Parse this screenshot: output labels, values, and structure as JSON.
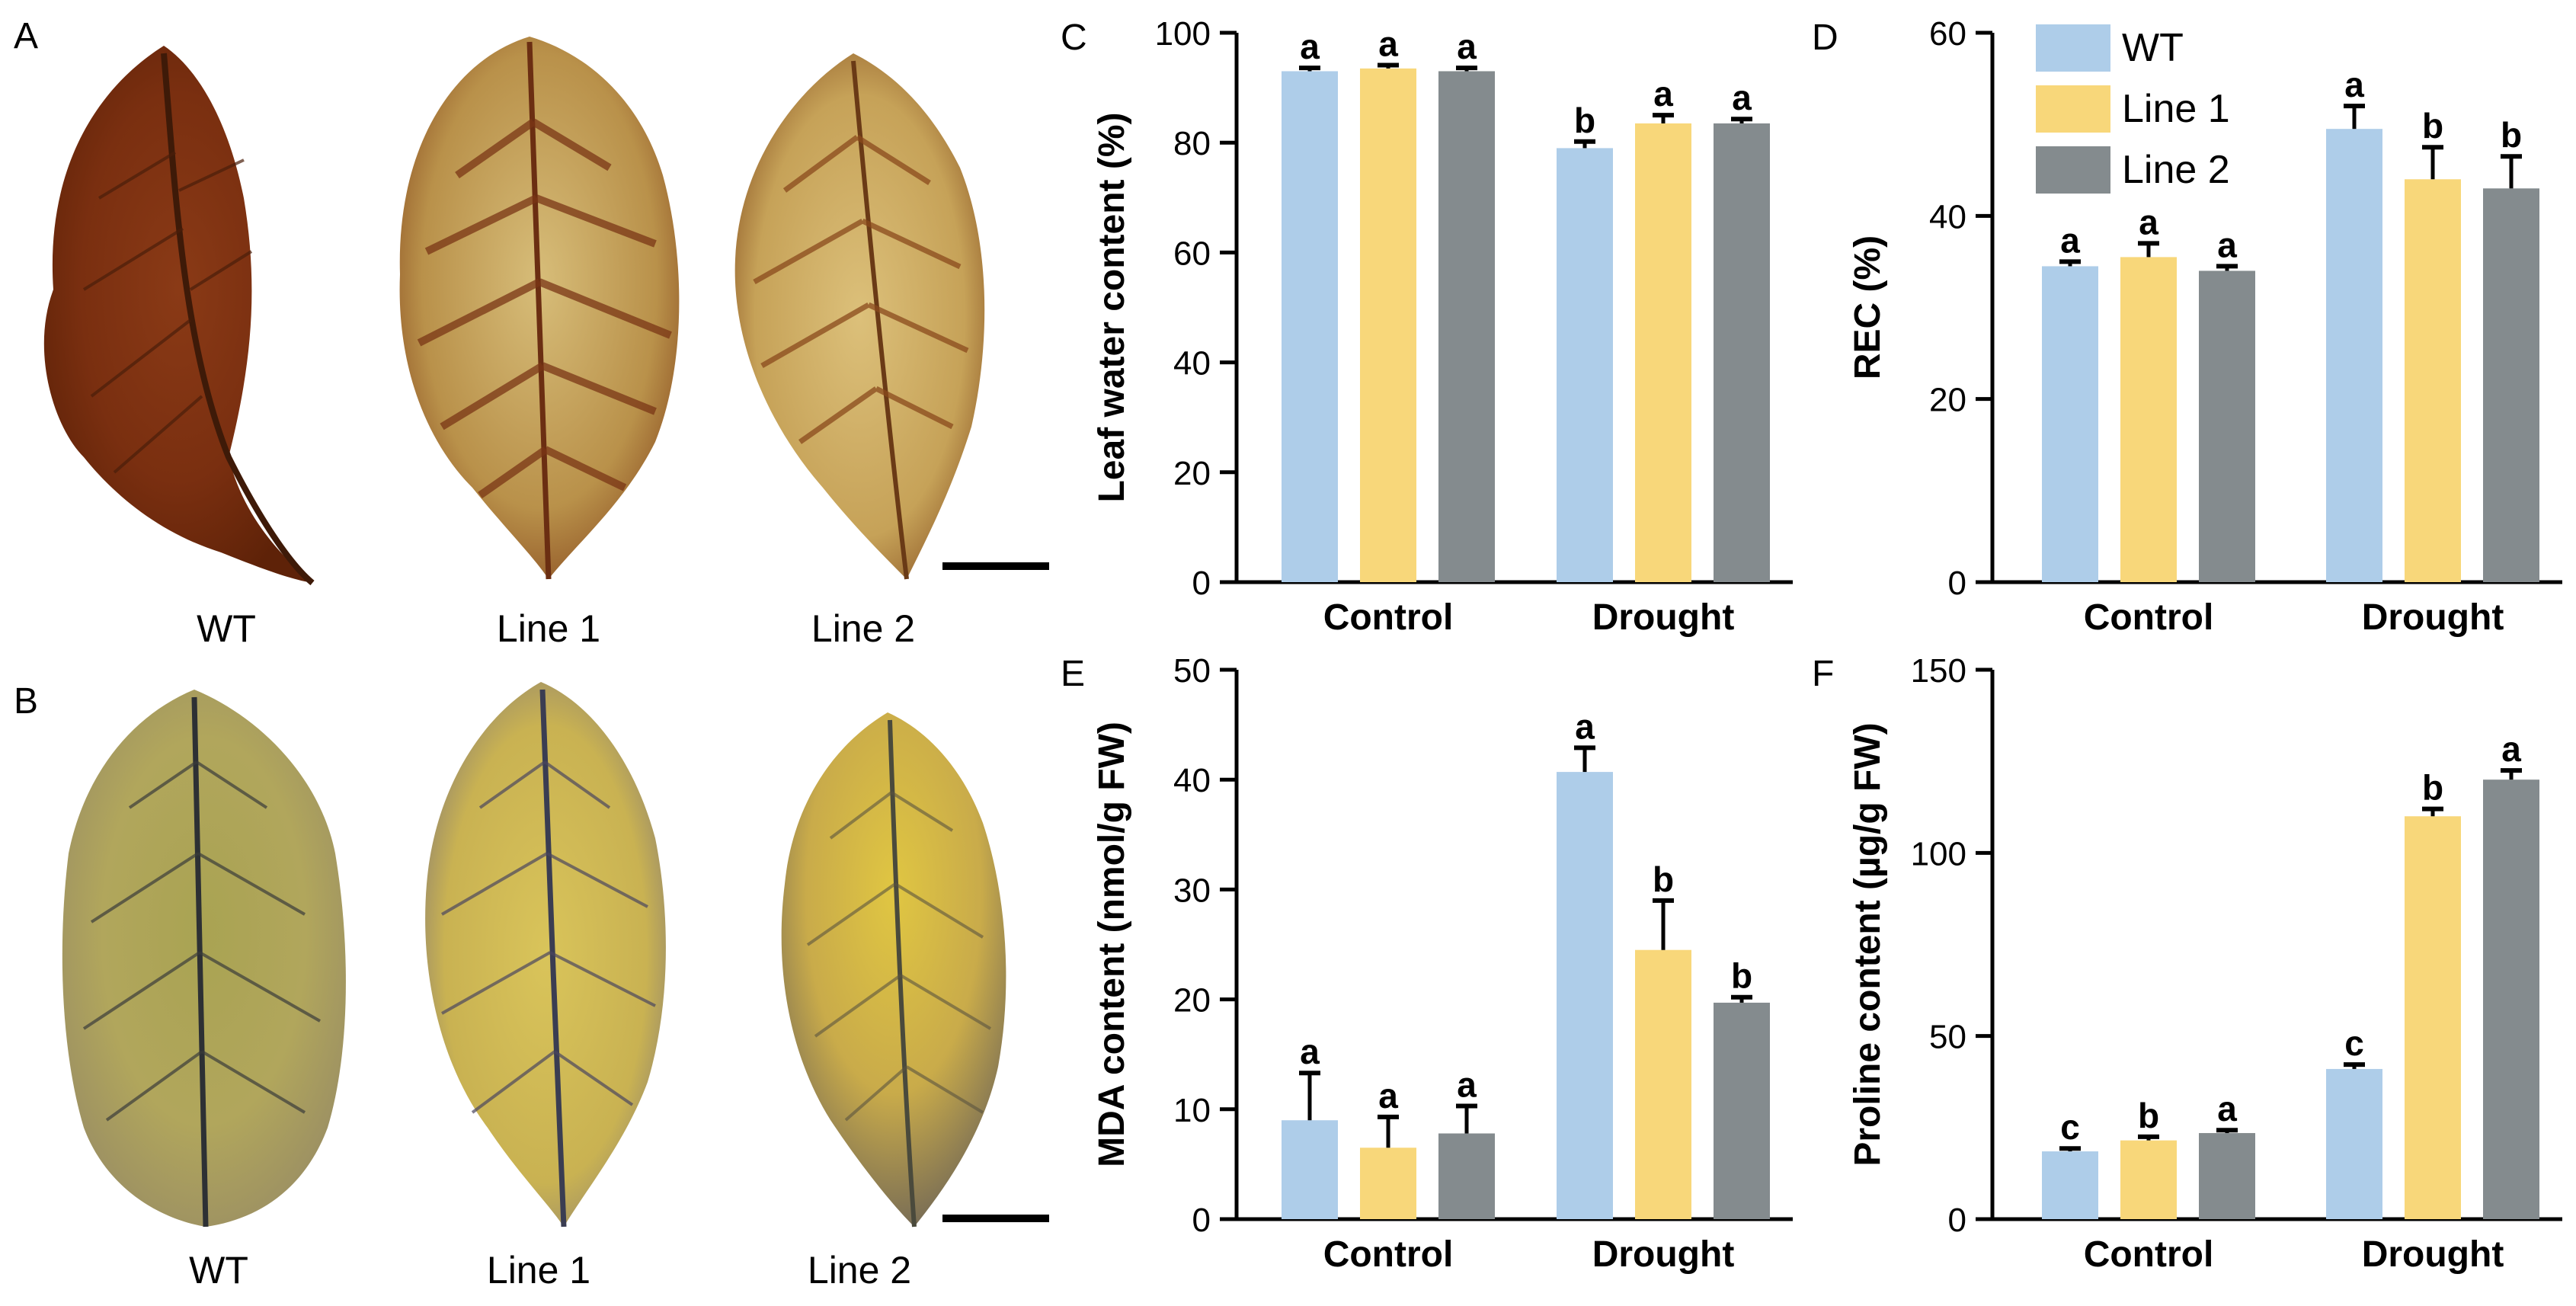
{
  "panels": {
    "A": "A",
    "B": "B",
    "C": "C",
    "D": "D",
    "E": "E",
    "F": "F"
  },
  "photos": {
    "row_A": {
      "labels": [
        "WT",
        "Line 1",
        "Line 2"
      ]
    },
    "row_B": {
      "labels": [
        "WT",
        "Line 1",
        "Line 2"
      ]
    }
  },
  "legend": [
    {
      "name": "WT",
      "color": "#aecde9"
    },
    {
      "name": "Line 1",
      "color": "#f8d77a"
    },
    {
      "name": "Line 2",
      "color": "#848b8e"
    }
  ],
  "chart_data": [
    {
      "id": "C",
      "type": "bar",
      "categories": [
        "Control",
        "Drought"
      ],
      "ylabel": "Leaf water content (%)",
      "ylim": [
        0,
        100
      ],
      "yticks": [
        0,
        20,
        40,
        60,
        80,
        100
      ],
      "series": [
        {
          "name": "WT",
          "color": "#aecde9",
          "values": [
            93,
            79
          ],
          "errors": [
            0.6,
            1.2
          ],
          "letters": [
            "a",
            "b"
          ]
        },
        {
          "name": "Line 1",
          "color": "#f8d77a",
          "values": [
            93.5,
            83.5
          ],
          "errors": [
            0.6,
            1.5
          ],
          "letters": [
            "a",
            "a"
          ]
        },
        {
          "name": "Line 2",
          "color": "#848b8e",
          "values": [
            93,
            83.5
          ],
          "errors": [
            0.6,
            0.8
          ],
          "letters": [
            "a",
            "a"
          ]
        }
      ]
    },
    {
      "id": "D",
      "type": "bar",
      "categories": [
        "Control",
        "Drought"
      ],
      "ylabel": "REC (%)",
      "ylim": [
        0,
        60
      ],
      "yticks": [
        0,
        20,
        40,
        60
      ],
      "series": [
        {
          "name": "WT",
          "color": "#aecde9",
          "values": [
            34.5,
            49.5
          ],
          "errors": [
            0.5,
            2.5
          ],
          "letters": [
            "a",
            "a"
          ]
        },
        {
          "name": "Line 1",
          "color": "#f8d77a",
          "values": [
            35.5,
            44
          ],
          "errors": [
            1.5,
            3.5
          ],
          "letters": [
            "a",
            "b"
          ]
        },
        {
          "name": "Line 2",
          "color": "#848b8e",
          "values": [
            34,
            43
          ],
          "errors": [
            0.5,
            3.5
          ],
          "letters": [
            "a",
            "b"
          ]
        }
      ]
    },
    {
      "id": "E",
      "type": "bar",
      "categories": [
        "Control",
        "Drought"
      ],
      "ylabel": "MDA content (nmol/g FW)",
      "ylim": [
        0,
        50
      ],
      "yticks": [
        0,
        10,
        20,
        30,
        40,
        50
      ],
      "series": [
        {
          "name": "WT",
          "color": "#aecde9",
          "values": [
            9,
            40.7
          ],
          "errors": [
            4.3,
            2.2
          ],
          "letters": [
            "a",
            "a"
          ]
        },
        {
          "name": "Line 1",
          "color": "#f8d77a",
          "values": [
            6.5,
            24.5
          ],
          "errors": [
            2.8,
            4.5
          ],
          "letters": [
            "a",
            "b"
          ]
        },
        {
          "name": "Line 2",
          "color": "#848b8e",
          "values": [
            7.8,
            19.7
          ],
          "errors": [
            2.5,
            0.5
          ],
          "letters": [
            "a",
            "b"
          ]
        }
      ]
    },
    {
      "id": "F",
      "type": "bar",
      "categories": [
        "Control",
        "Drought"
      ],
      "ylabel": "Proline content (µg/g FW)",
      "ylim": [
        0,
        150
      ],
      "yticks": [
        0,
        50,
        100,
        150
      ],
      "series": [
        {
          "name": "WT",
          "color": "#aecde9",
          "values": [
            18.5,
            41
          ],
          "errors": [
            0.8,
            1.2
          ],
          "letters": [
            "c",
            "c"
          ]
        },
        {
          "name": "Line 1",
          "color": "#f8d77a",
          "values": [
            21.5,
            110
          ],
          "errors": [
            1,
            2
          ],
          "letters": [
            "b",
            "b"
          ]
        },
        {
          "name": "Line 2",
          "color": "#848b8e",
          "values": [
            23.5,
            120
          ],
          "errors": [
            0.8,
            2.5
          ],
          "letters": [
            "a",
            "a"
          ]
        }
      ]
    }
  ]
}
